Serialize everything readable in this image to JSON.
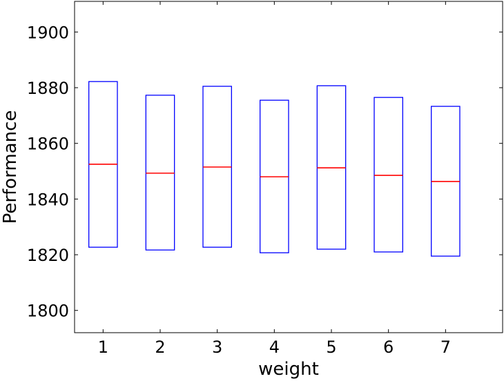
{
  "chart_data": {
    "type": "box",
    "title": "",
    "xlabel": "weight",
    "ylabel": "Performance",
    "categories": [
      "1",
      "2",
      "3",
      "4",
      "5",
      "6",
      "7"
    ],
    "boxes": [
      {
        "q1": 1822.7,
        "median": 1852.5,
        "q3": 1882.2
      },
      {
        "q1": 1821.7,
        "median": 1849.3,
        "q3": 1877.3
      },
      {
        "q1": 1822.7,
        "median": 1851.5,
        "q3": 1880.5
      },
      {
        "q1": 1820.7,
        "median": 1848.0,
        "q3": 1875.5
      },
      {
        "q1": 1822.0,
        "median": 1851.2,
        "q3": 1880.7
      },
      {
        "q1": 1821.0,
        "median": 1848.5,
        "q3": 1876.5
      },
      {
        "q1": 1819.5,
        "median": 1846.3,
        "q3": 1873.3
      }
    ],
    "ylim": [
      1792,
      1911
    ],
    "yticks": [
      1800,
      1820,
      1840,
      1860,
      1880,
      1900
    ],
    "grid": false,
    "colors": {
      "box": "#0000ff",
      "median": "#ff0000"
    }
  }
}
